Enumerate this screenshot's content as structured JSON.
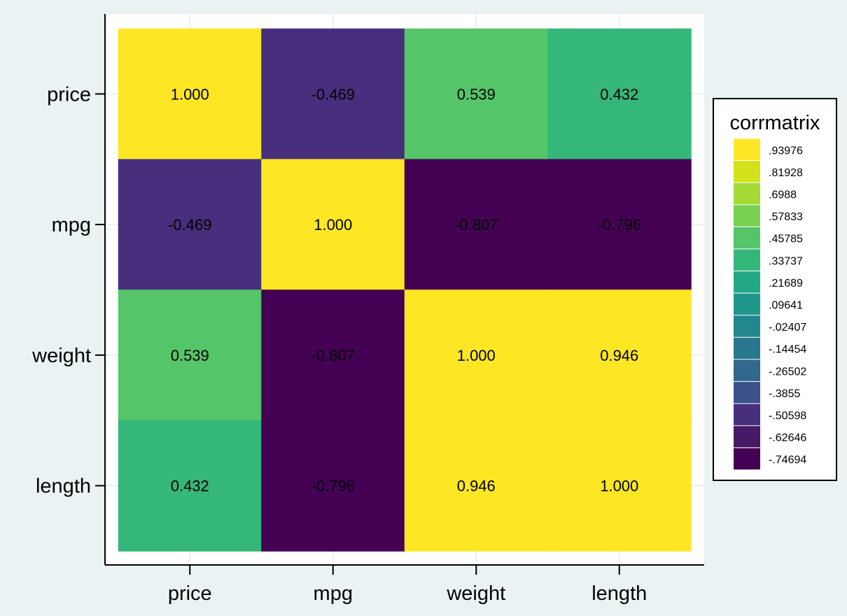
{
  "chart_data": {
    "type": "heatmap",
    "title": "",
    "xlabel": "",
    "ylabel": "",
    "x_categories": [
      "price",
      "mpg",
      "weight",
      "length"
    ],
    "y_categories": [
      "price",
      "mpg",
      "weight",
      "length"
    ],
    "values": [
      [
        1.0,
        -0.469,
        0.539,
        0.432
      ],
      [
        -0.469,
        1.0,
        -0.807,
        -0.796
      ],
      [
        0.539,
        -0.807,
        1.0,
        0.946
      ],
      [
        0.432,
        -0.796,
        0.946,
        1.0
      ]
    ],
    "cell_labels": [
      [
        "1.000",
        "-0.469",
        "0.539",
        "0.432"
      ],
      [
        "-0.469",
        "1.000",
        "-0.807",
        "-0.796"
      ],
      [
        "0.539",
        "-0.807",
        "1.000",
        "0.946"
      ],
      [
        "0.432",
        "-0.796",
        "0.946",
        "1.000"
      ]
    ],
    "legend": {
      "title": "corrmatrix",
      "placement": "right",
      "bins": [
        {
          "label": ".93976",
          "color": "#fde725"
        },
        {
          "label": ".81928",
          "color": "#d2e21b"
        },
        {
          "label": ".6988",
          "color": "#a5db36"
        },
        {
          "label": ".57833",
          "color": "#7ad151"
        },
        {
          "label": ".45785",
          "color": "#54c568"
        },
        {
          "label": ".33737",
          "color": "#35b779"
        },
        {
          "label": ".21689",
          "color": "#22a884"
        },
        {
          "label": ".09641",
          "color": "#1f988b"
        },
        {
          "label": "-.02407",
          "color": "#23888e"
        },
        {
          "label": "-.14454",
          "color": "#2a788e"
        },
        {
          "label": "-.26502",
          "color": "#31688e"
        },
        {
          "label": "-.3855",
          "color": "#3b528b"
        },
        {
          "label": "-.50598",
          "color": "#472f7d"
        },
        {
          "label": "-.62646",
          "color": "#471a67"
        },
        {
          "label": "-.74694",
          "color": "#440154"
        }
      ]
    },
    "grid": true,
    "colors": {
      "background": "#eaf2f3",
      "plot_background": "#ffffff",
      "gridline": "#e4eef0",
      "axis": "#000000",
      "cell_text": "#000000"
    }
  }
}
